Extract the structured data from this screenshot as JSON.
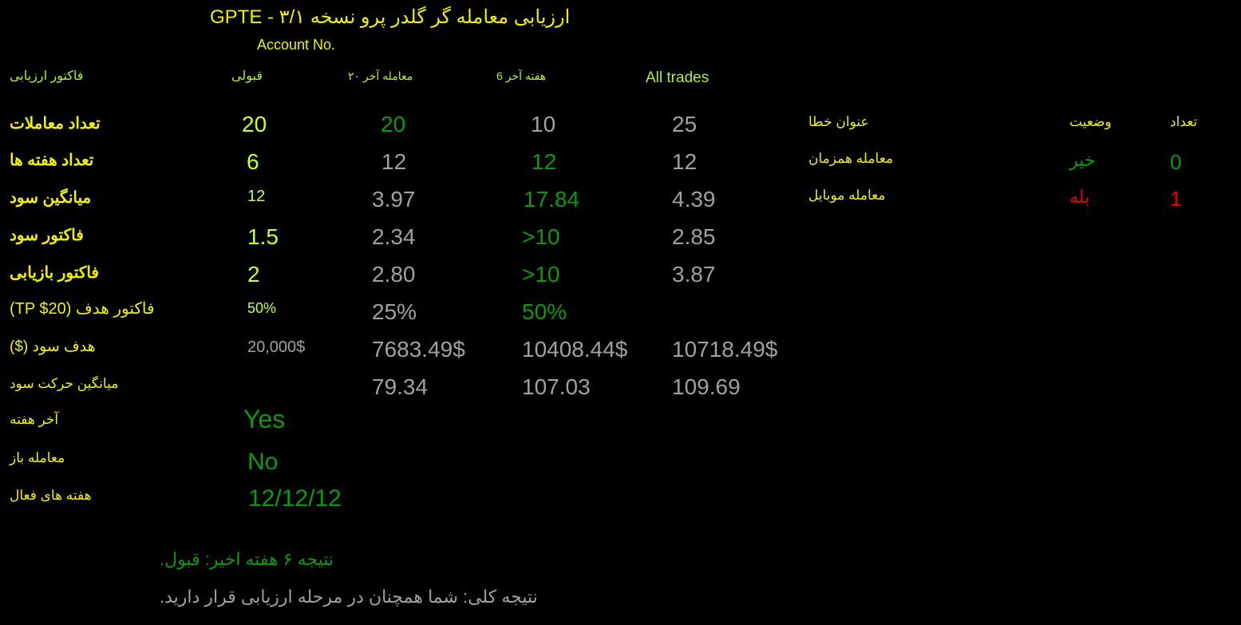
{
  "header": {
    "title": "ارزیابی معامله گر گلدر پرو نسخه ۳/۱ - GPTE",
    "account_label": "Account No."
  },
  "columns": [
    "فاکتور ارزیابی",
    "قبولی",
    "معامله آخر ۲۰",
    "هفته آخر 6",
    "All trades"
  ],
  "colors": {
    "label": "#f0f000",
    "lime": "#c8ff30",
    "green": "#0a9a0a",
    "gray": "#a0a0a0",
    "red": "#ee0000",
    "background": "#000000"
  },
  "rows": [
    {
      "label": "تعداد معاملات",
      "values": [
        "20",
        "20",
        "10",
        "25"
      ]
    },
    {
      "label": "تعداد هفته ها",
      "values": [
        "6",
        "12",
        "12",
        "12"
      ]
    },
    {
      "label": "میانگین سود",
      "values": [
        "12",
        "3.97",
        "17.84",
        "4.39"
      ]
    },
    {
      "label": "فاکتور سود",
      "values": [
        "1.5",
        "2.34",
        ">10",
        "2.85"
      ]
    },
    {
      "label": "فاکتور بازیابی",
      "values": [
        "2",
        "2.80",
        ">10",
        "3.87"
      ]
    },
    {
      "label": "فاکتور هدف (TP $20)",
      "values": [
        "50%",
        "25%",
        "50%",
        ""
      ]
    },
    {
      "label": "هدف سود ($)",
      "values": [
        "20,000$",
        "7683.49$",
        "10408.44$",
        "10718.49$"
      ]
    },
    {
      "label": "میانگین حرکت سود",
      "values": [
        "",
        "79.34",
        "107.03",
        "109.69"
      ]
    },
    {
      "label": "آخر هفته",
      "values": [
        "Yes"
      ]
    },
    {
      "label": "معامله باز",
      "values": [
        "No"
      ]
    },
    {
      "label": "هفته های فعال",
      "values": [
        "12/12/12"
      ]
    }
  ],
  "errors": {
    "headers": [
      "عنوان خطا",
      "وضعیت",
      "تعداد"
    ],
    "rows": [
      {
        "title": "معامله همزمان",
        "status": "خیر",
        "count": "0"
      },
      {
        "title": "معامله موبایل",
        "status": "بله",
        "count": "1"
      }
    ]
  },
  "results": {
    "six_weeks": "نتیجه ۶ هفته اخیر: قبول.",
    "overall": "نتیجه کلی: شما همچنان در مرحله ارزیابی قرار دارید."
  }
}
